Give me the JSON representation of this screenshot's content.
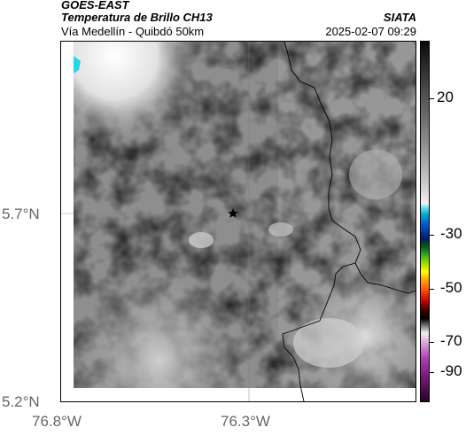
{
  "header": {
    "satellite": "GOES-EAST",
    "product": "Temperatura de Brillo CH13",
    "route": "Vía Medellín - Quibdó 50km",
    "organization": "SIATA",
    "datetime": "2025-02-07 09:29"
  },
  "axes": {
    "y_ticks": [
      {
        "label": "5.7°N",
        "value": 5.7
      },
      {
        "label": "5.2°N",
        "value": 5.2
      }
    ],
    "x_ticks": [
      {
        "label": "76.8°W",
        "value": -76.8
      },
      {
        "label": "76.3°W",
        "value": -76.3
      }
    ]
  },
  "colorbar": {
    "ticks": [
      {
        "label": "20",
        "value": 20
      },
      {
        "label": "-30",
        "value": -30
      },
      {
        "label": "-50",
        "value": -50
      },
      {
        "label": "-70",
        "value": -70
      },
      {
        "label": "-90",
        "value": -90
      }
    ]
  },
  "marker": {
    "icon": "star-icon",
    "lat": 5.7,
    "lon": -76.35
  }
}
